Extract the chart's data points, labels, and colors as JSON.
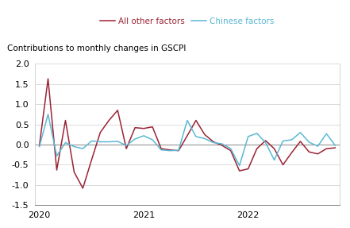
{
  "title": "Contributions to monthly changes in GSCPI",
  "legend_labels": [
    "All other factors",
    "Chinese factors"
  ],
  "legend_colors": [
    "#9b2335",
    "#5bb8d4"
  ],
  "ylim": [
    -1.5,
    2.0
  ],
  "yticks": [
    -1.5,
    -1.0,
    -0.5,
    0.0,
    0.5,
    1.0,
    1.5,
    2.0
  ],
  "background_color": "#ffffff",
  "all_other_factors": [
    -0.03,
    1.63,
    -0.63,
    0.6,
    -0.68,
    -1.08,
    -0.38,
    0.3,
    0.6,
    0.85,
    -0.1,
    0.42,
    0.4,
    0.44,
    -0.1,
    -0.13,
    -0.15,
    0.22,
    0.6,
    0.25,
    0.07,
    -0.02,
    -0.15,
    -0.65,
    -0.6,
    -0.1,
    0.1,
    -0.1,
    -0.5,
    -0.2,
    0.08,
    -0.18,
    -0.23,
    -0.1,
    -0.08
  ],
  "chinese_factors": [
    -0.05,
    0.75,
    -0.28,
    0.05,
    -0.05,
    -0.1,
    0.09,
    0.07,
    0.07,
    0.08,
    -0.02,
    0.14,
    0.22,
    0.12,
    -0.13,
    -0.15,
    -0.14,
    0.6,
    0.2,
    0.15,
    0.05,
    0.02,
    -0.1,
    -0.52,
    0.2,
    0.28,
    0.05,
    -0.38,
    0.09,
    0.12,
    0.3,
    0.06,
    -0.04,
    0.27,
    -0.02
  ],
  "n_months": 35,
  "xtick_positions": [
    0,
    12,
    24
  ],
  "xtick_labels": [
    "2020",
    "2021",
    "2022"
  ]
}
